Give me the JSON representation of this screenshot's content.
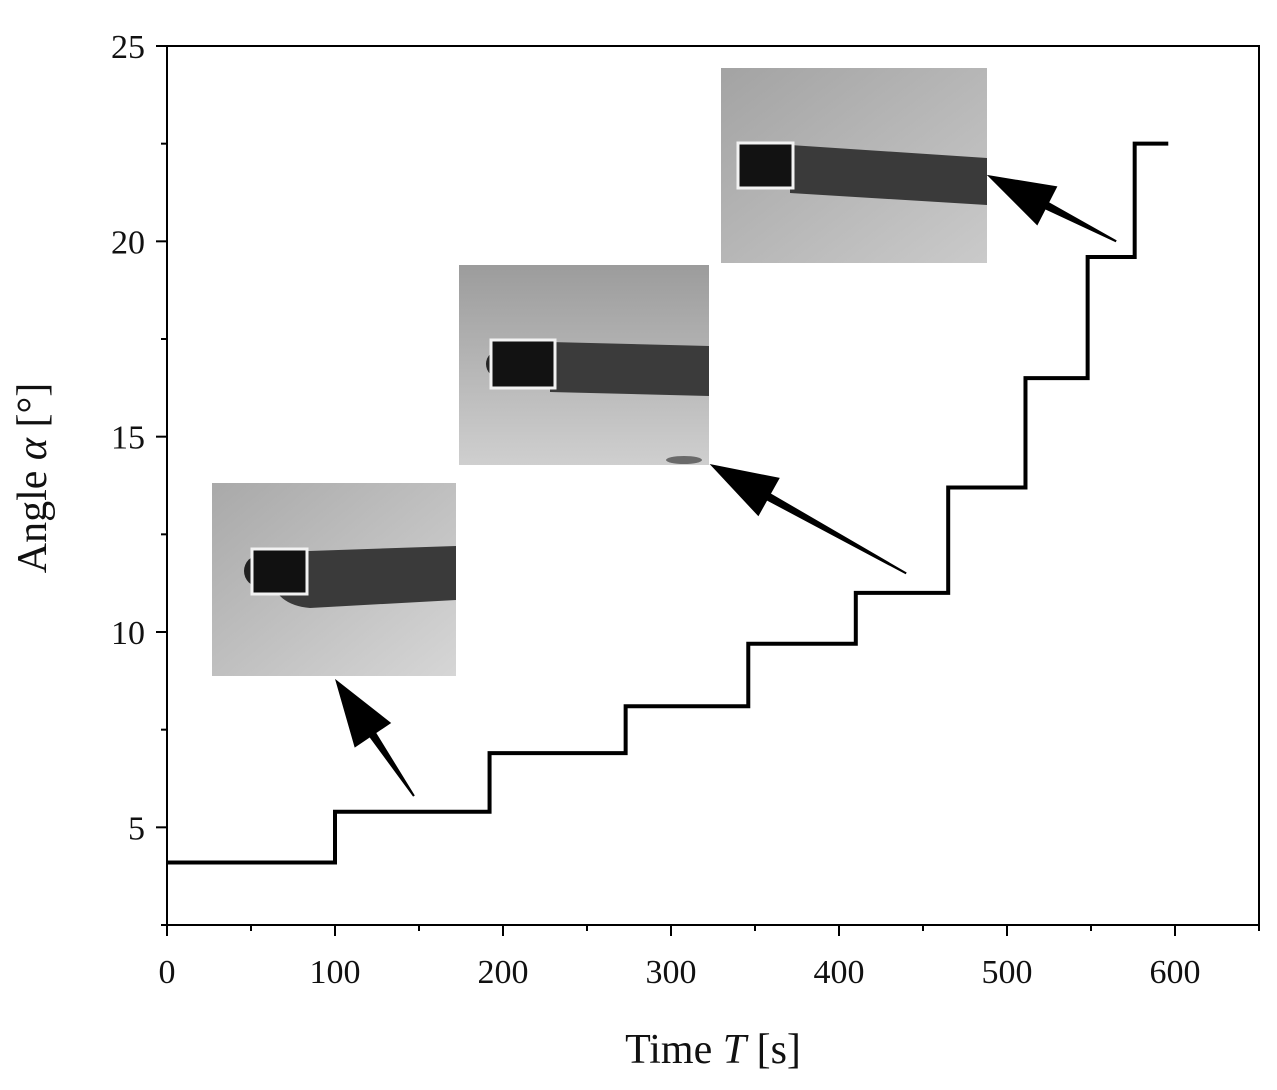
{
  "chart_data": {
    "type": "line",
    "step": true,
    "xlabel": {
      "text": "Time ",
      "var": "T",
      "unit": " [s]"
    },
    "ylabel": {
      "text": "Angle ",
      "var": "α",
      "unit": " [°]"
    },
    "xlim": [
      0,
      650
    ],
    "ylim": [
      2.5,
      25
    ],
    "xticks": [
      0,
      100,
      200,
      300,
      400,
      500,
      600
    ],
    "yticks": [
      5,
      10,
      15,
      20,
      25
    ],
    "x_minor_step": 50,
    "y_minor_step": 2.5,
    "grid": false,
    "line_color": "#000000",
    "steps": [
      {
        "x": 0,
        "y": 4.1
      },
      {
        "x": 100,
        "y": 5.4
      },
      {
        "x": 192,
        "y": 6.9
      },
      {
        "x": 273,
        "y": 8.1
      },
      {
        "x": 346,
        "y": 9.7
      },
      {
        "x": 410,
        "y": 11.0
      },
      {
        "x": 465,
        "y": 13.7
      },
      {
        "x": 511,
        "y": 16.5
      },
      {
        "x": 548,
        "y": 19.6
      },
      {
        "x": 576,
        "y": 22.5
      }
    ],
    "x_end": 596,
    "insets": [
      {
        "name": "inset-photo-1",
        "arrow_tip": {
          "x": 100,
          "y": 8.8
        },
        "arrow_tail": {
          "x": 147,
          "y": 5.8
        }
      },
      {
        "name": "inset-photo-2",
        "arrow_tip": {
          "x": 323,
          "y": 14.3
        },
        "arrow_tail": {
          "x": 440,
          "y": 11.5
        }
      },
      {
        "name": "inset-photo-3",
        "arrow_tip": {
          "x": 488,
          "y": 21.7
        },
        "arrow_tail": {
          "x": 565,
          "y": 20.0
        }
      }
    ]
  }
}
